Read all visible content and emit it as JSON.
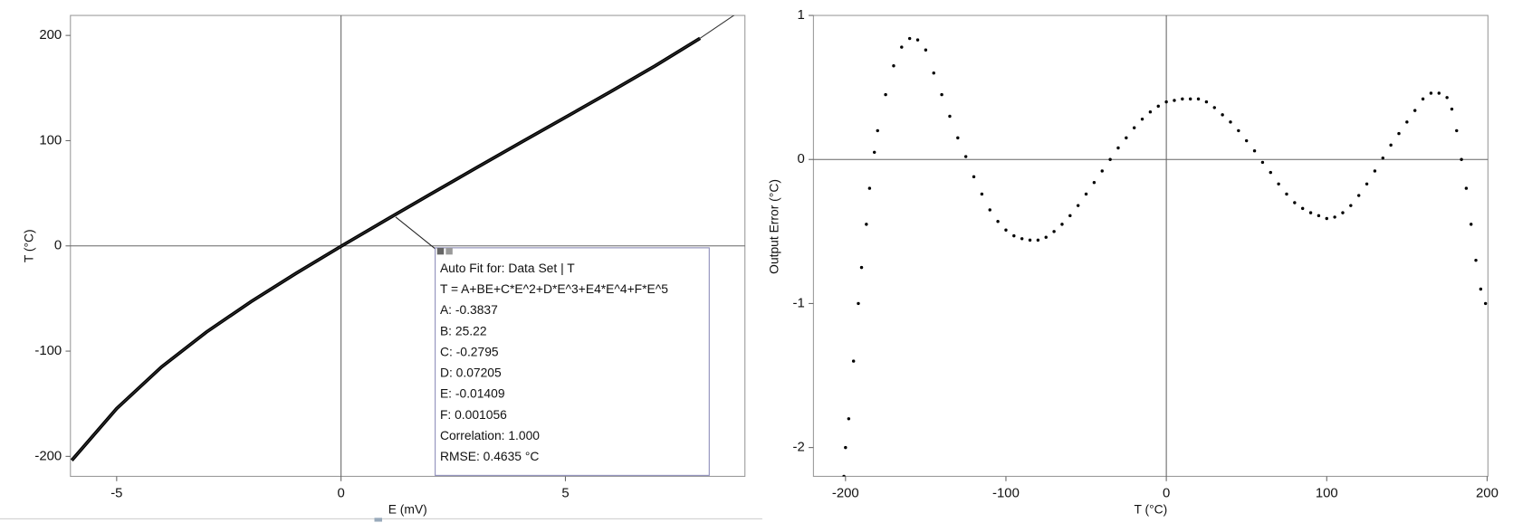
{
  "chart_data": [
    {
      "type": "line",
      "x_label": "E (mV)",
      "y_label": "T (°C)",
      "x": [
        -6,
        -5,
        -4,
        -3,
        -2,
        -1,
        0,
        1,
        2,
        3,
        4,
        5,
        6,
        7,
        8,
        8.9
      ],
      "series": [
        {
          "color": "#000000",
          "values": [
            -203.8,
            -154.6,
            -115.0,
            -81.9,
            -52.8,
            -26.0,
            -0.38,
            24.6,
            49.3,
            73.8,
            98.1,
            122.2,
            146.4,
            171.1,
            197.3,
            null
          ]
        },
        {
          "color": "#333333",
          "values": [
            -203.8,
            -154.6,
            -115.0,
            -81.9,
            -52.8,
            -26.0,
            -0.38,
            24.6,
            49.3,
            73.8,
            98.1,
            122.2,
            146.4,
            171.1,
            197.3,
            223.3
          ]
        }
      ],
      "xlim": [
        -6.03,
        9
      ],
      "ylim": [
        -219,
        219
      ],
      "xticks": [
        -5,
        0,
        5
      ],
      "yticks": [
        -200,
        -100,
        0,
        100,
        200
      ],
      "zero_lines": true,
      "annotation": {
        "lines": [
          "Auto Fit for: Data Set | T",
          "T = A+BE+C*E^2+D*E^3+E4*E^4+F*E^5",
          "A: -0.3837",
          "B: 25.22",
          "C: -0.2795",
          "D: 0.07205",
          "E: -0.01409",
          "F: 0.001056",
          "Correlation: 1.000",
          "RMSE: 0.4635 °C"
        ]
      }
    },
    {
      "type": "scatter",
      "x_label": "T (°C)",
      "y_label": "Output Error (°C)",
      "x": [
        -201,
        -200,
        -198,
        -195,
        -192,
        -190,
        -187,
        -185,
        -182,
        -180,
        -175,
        -170,
        -165,
        -160,
        -155,
        -150,
        -145,
        -140,
        -135,
        -130,
        -125,
        -120,
        -115,
        -110,
        -105,
        -100,
        -95,
        -90,
        -85,
        -80,
        -75,
        -70,
        -65,
        -60,
        -55,
        -50,
        -45,
        -40,
        -35,
        -30,
        -25,
        -20,
        -15,
        -10,
        -5,
        0,
        5,
        10,
        15,
        20,
        25,
        30,
        35,
        40,
        45,
        50,
        55,
        60,
        65,
        70,
        75,
        80,
        85,
        90,
        95,
        100,
        105,
        110,
        115,
        120,
        125,
        130,
        135,
        140,
        145,
        150,
        155,
        160,
        165,
        170,
        175,
        178,
        181,
        184,
        187,
        190,
        193,
        196,
        199
      ],
      "series": [
        {
          "color": "#000000",
          "values": [
            -2.2,
            -2.0,
            -1.8,
            -1.4,
            -1.0,
            -0.75,
            -0.45,
            -0.2,
            0.05,
            0.2,
            0.45,
            0.65,
            0.78,
            0.84,
            0.83,
            0.76,
            0.6,
            0.45,
            0.3,
            0.15,
            0.02,
            -0.12,
            -0.24,
            -0.35,
            -0.43,
            -0.49,
            -0.53,
            -0.55,
            -0.56,
            -0.56,
            -0.54,
            -0.5,
            -0.45,
            -0.39,
            -0.32,
            -0.24,
            -0.16,
            -0.08,
            0.0,
            0.08,
            0.15,
            0.22,
            0.28,
            0.33,
            0.37,
            0.4,
            0.41,
            0.42,
            0.42,
            0.42,
            0.4,
            0.36,
            0.31,
            0.26,
            0.2,
            0.13,
            0.06,
            -0.02,
            -0.09,
            -0.17,
            -0.24,
            -0.3,
            -0.34,
            -0.37,
            -0.39,
            -0.41,
            -0.4,
            -0.37,
            -0.32,
            -0.25,
            -0.17,
            -0.08,
            0.01,
            0.1,
            0.18,
            0.26,
            0.34,
            0.42,
            0.46,
            0.46,
            0.43,
            0.35,
            0.2,
            0.0,
            -0.2,
            -0.45,
            -0.7,
            -0.9,
            -1.0
          ]
        }
      ],
      "xlim": [
        -220,
        200.5
      ],
      "ylim": [
        -2.2,
        1.0
      ],
      "xticks": [
        -200,
        -100,
        0,
        100,
        200
      ],
      "yticks": [
        -2,
        -1,
        0,
        1
      ],
      "zero_lines": true
    }
  ]
}
